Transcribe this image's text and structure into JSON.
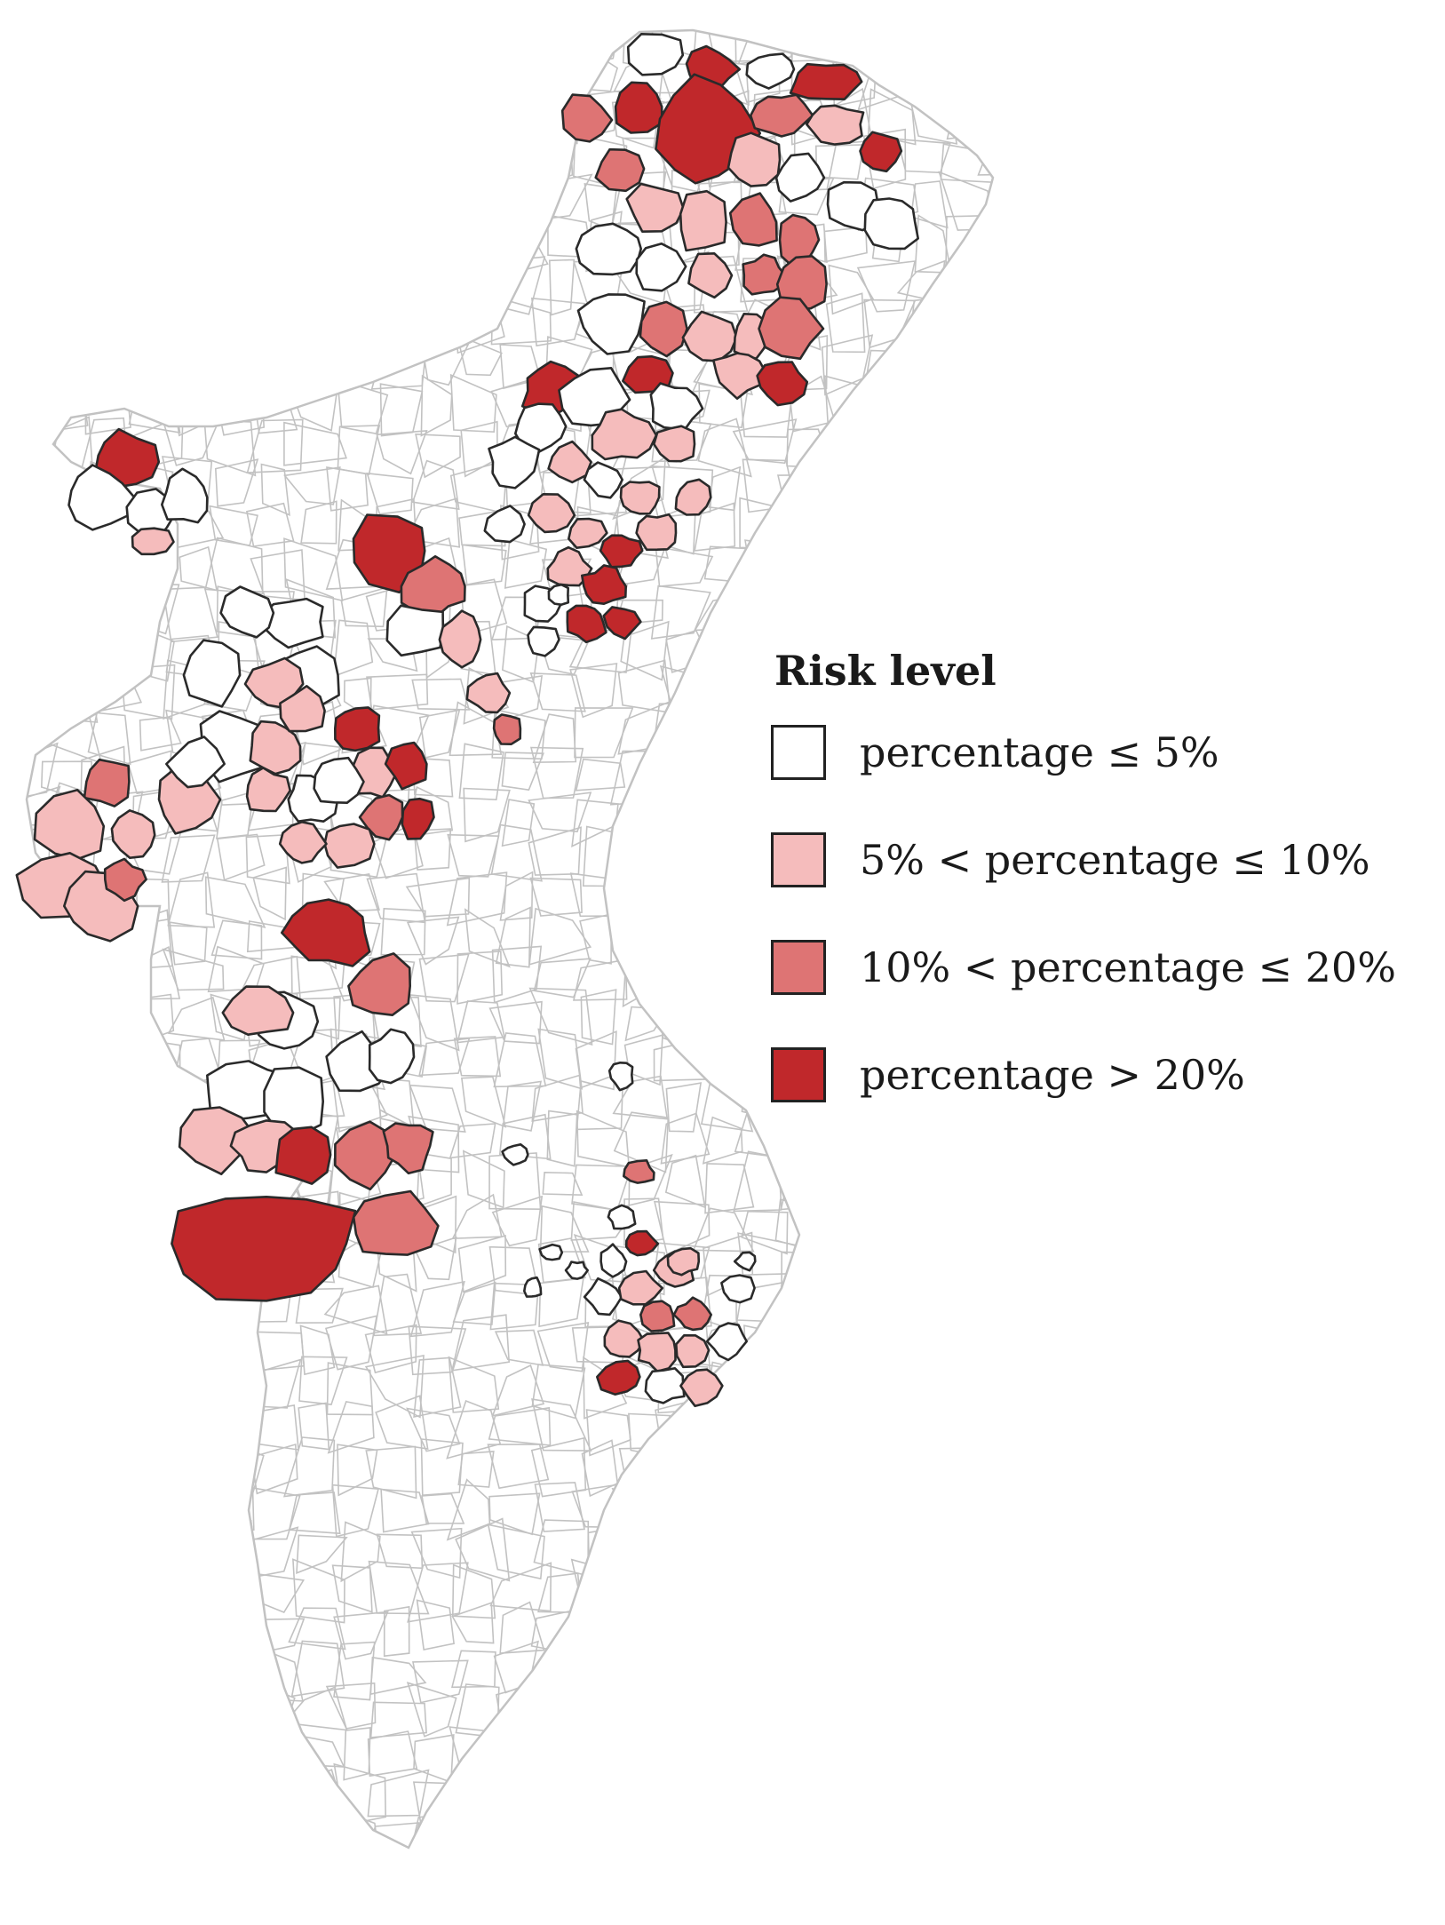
{
  "legend": {
    "title": "Risk level",
    "items": [
      {
        "label": "percentage ≤ 5%",
        "color": "#ffffff",
        "category": "low"
      },
      {
        "label": "5% < percentage ≤ 10%",
        "color": "#f5bcbc",
        "category": "moderate"
      },
      {
        "label": "10% < percentage ≤ 20%",
        "color": "#de7474",
        "category": "high"
      },
      {
        "label": "percentage > 20%",
        "color": "#c0282b",
        "category": "very-high"
      }
    ]
  },
  "colors": {
    "base_outline": "#c2c2c2",
    "region_outline": "#2a2a2a",
    "background": "#ffffff"
  }
}
